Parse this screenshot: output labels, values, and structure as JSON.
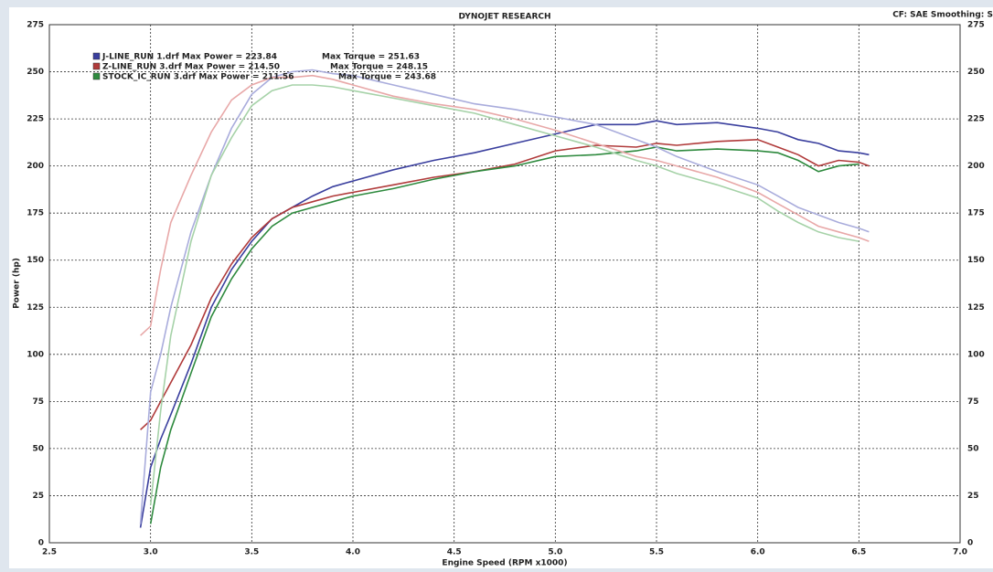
{
  "chart_data": {
    "type": "line",
    "title": "DYNOJET RESEARCH",
    "corner_text": "CF: SAE  Smoothing: S",
    "x_label": "Engine Speed (RPM x1000)",
    "y_label": "Power (hp)",
    "grid": true,
    "xlim": [
      2.5,
      7.0
    ],
    "ylim": [
      0,
      275
    ],
    "xticks": [
      2.5,
      {
        "value": 3,
        "label": "3.0"
      },
      3.5,
      {
        "value": 4,
        "label": "4.0"
      },
      4.5,
      {
        "value": 5,
        "label": "5.0"
      },
      5.5,
      {
        "value": 6,
        "label": "6.0"
      },
      6.5,
      {
        "value": 7,
        "label": "7.0"
      }
    ],
    "yticks": [
      0,
      25,
      50,
      75,
      100,
      125,
      150,
      175,
      200,
      225,
      250,
      275
    ],
    "x": [
      2.95,
      3.0,
      3.05,
      3.1,
      3.2,
      3.3,
      3.4,
      3.5,
      3.6,
      3.7,
      3.8,
      3.9,
      4.0,
      4.2,
      4.4,
      4.6,
      4.8,
      5.0,
      5.2,
      5.4,
      5.5,
      5.6,
      5.8,
      6.0,
      6.1,
      6.2,
      6.3,
      6.4,
      6.5,
      6.55
    ],
    "series": [
      {
        "name": "J-LINE_RUN 1.drf Max Power = 223.84",
        "color": "#3a3f9e",
        "values": [
          8,
          40,
          55,
          68,
          95,
          125,
          145,
          160,
          172,
          178,
          184,
          189,
          192,
          198,
          203,
          207,
          212,
          217,
          222,
          222,
          224,
          222,
          223,
          220,
          218,
          214,
          212,
          208,
          207,
          206
        ]
      },
      {
        "name": "Z-LINE_RUN 3.drf Max Power = 214.50",
        "color": "#b03a3a",
        "values": [
          60,
          65,
          75,
          85,
          105,
          130,
          148,
          162,
          172,
          178,
          181,
          184,
          186,
          190,
          194,
          197,
          201,
          208,
          211,
          210,
          212,
          211,
          213,
          214,
          210,
          206,
          200,
          203,
          202,
          200
        ]
      },
      {
        "name": "STOCK_IC_RUN 3.drf Max Power = 211.56",
        "color": "#2e8a3e",
        "values": [
          null,
          10,
          40,
          60,
          90,
          120,
          140,
          156,
          168,
          175,
          178,
          181,
          184,
          188,
          193,
          197,
          200,
          205,
          206,
          208,
          210,
          208,
          209,
          208,
          207,
          203,
          197,
          200,
          201,
          null
        ]
      },
      {
        "name": "Max Torque = 251.63",
        "color": "#a9acdc",
        "values": [
          10,
          80,
          100,
          125,
          165,
          195,
          220,
          238,
          247,
          250,
          251,
          249,
          248,
          243,
          238,
          233,
          230,
          226,
          222,
          214,
          210,
          205,
          197,
          190,
          184,
          178,
          174,
          170,
          167,
          165
        ]
      },
      {
        "name": "Max Torque = 248.15",
        "color": "#e8a8a8",
        "values": [
          110,
          115,
          145,
          170,
          195,
          218,
          235,
          243,
          247,
          247,
          248,
          246,
          243,
          237,
          233,
          230,
          225,
          219,
          212,
          205,
          203,
          200,
          194,
          186,
          180,
          174,
          168,
          165,
          162,
          160
        ]
      },
      {
        "name": "Max Torque = 243.68",
        "color": "#a6d2a8",
        "values": [
          null,
          20,
          70,
          110,
          160,
          195,
          215,
          232,
          240,
          243,
          243,
          242,
          240,
          236,
          232,
          228,
          222,
          216,
          210,
          203,
          200,
          196,
          190,
          183,
          176,
          170,
          165,
          162,
          160,
          null
        ]
      }
    ]
  }
}
